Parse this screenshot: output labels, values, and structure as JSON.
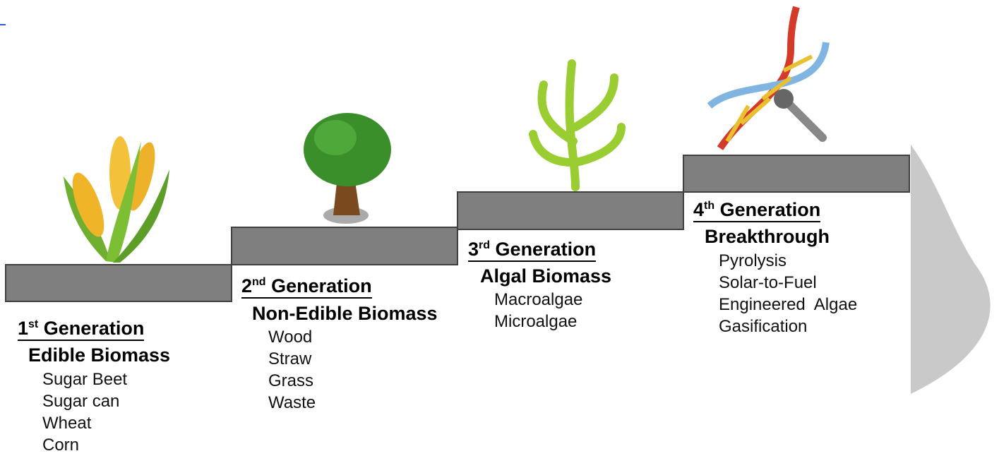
{
  "generations": [
    {
      "ordinal": "1",
      "suffix": "st",
      "word": "Generation",
      "category": "Edible Biomass",
      "items": [
        "Sugar Beet",
        "Sugar can",
        "Wheat",
        "Corn"
      ]
    },
    {
      "ordinal": "2",
      "suffix": "nd",
      "word": "Generation",
      "category": "Non-Edible Biomass",
      "items": [
        "Wood",
        "Straw",
        "Grass",
        "Waste"
      ]
    },
    {
      "ordinal": "3",
      "suffix": "rd",
      "word": "Generation",
      "category": "Algal Biomass",
      "items": [
        "Macroalgae",
        "Microalgae"
      ]
    },
    {
      "ordinal": "4",
      "suffix": "th",
      "word": "Generation",
      "category": "Breakthrough",
      "items": [
        "Pyrolysis",
        "Solar-to-Fuel",
        "Engineered  Algae",
        "Gasification"
      ]
    }
  ]
}
